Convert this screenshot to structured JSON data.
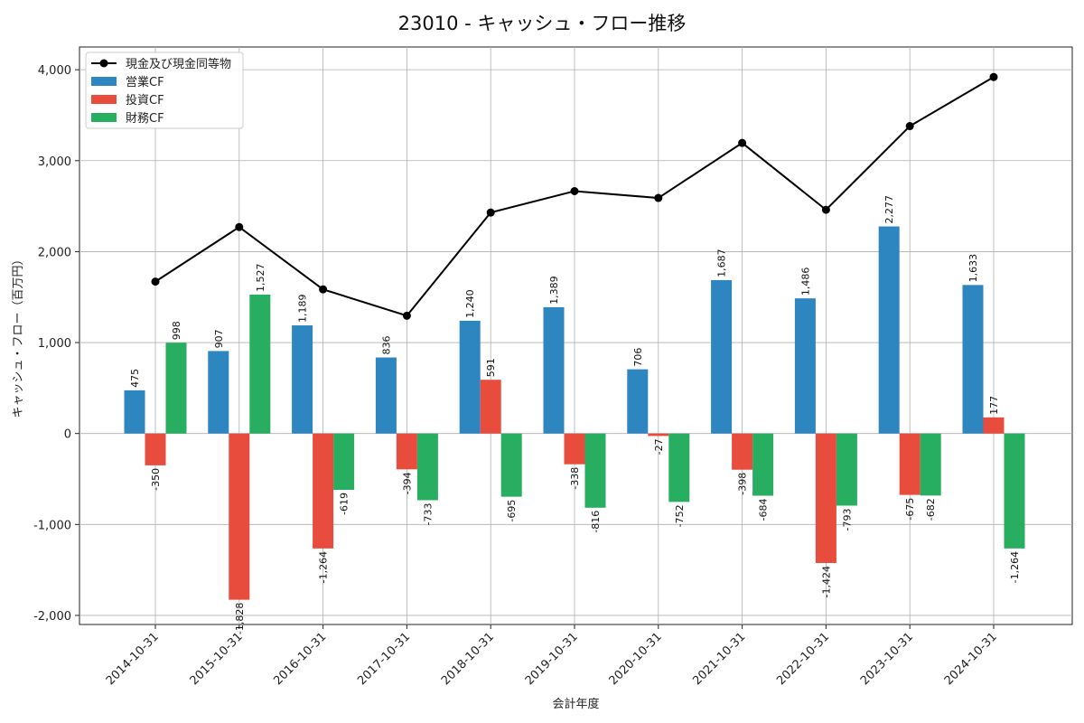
{
  "chart_data": {
    "type": "bar",
    "title": "23010 - キャッシュ・フロー推移",
    "xlabel": "会計年度",
    "ylabel": "キャッシュ・フロー（百万円）",
    "categories": [
      "2014-10-31",
      "2015-10-31",
      "2016-10-31",
      "2017-10-31",
      "2018-10-31",
      "2019-10-31",
      "2020-10-31",
      "2021-10-31",
      "2022-10-31",
      "2023-10-31",
      "2024-10-31"
    ],
    "series": [
      {
        "name": "営業CF",
        "type": "bar",
        "color": "#2e86c1",
        "values": [
          475,
          907,
          1189,
          836,
          1240,
          1389,
          706,
          1687,
          1486,
          2277,
          1633
        ]
      },
      {
        "name": "投資CF",
        "type": "bar",
        "color": "#e74c3c",
        "values": [
          -350,
          -1828,
          -1264,
          -394,
          591,
          -338,
          -27,
          -398,
          -1424,
          -675,
          177
        ]
      },
      {
        "name": "財務CF",
        "type": "bar",
        "color": "#27ae60",
        "values": [
          998,
          1527,
          -619,
          -733,
          -695,
          -816,
          -752,
          -684,
          -793,
          -682,
          -1264
        ]
      },
      {
        "name": "現金及び現金同等物",
        "type": "line",
        "color": "#000000",
        "values": [
          1670,
          2270,
          1585,
          1295,
          2430,
          2665,
          2590,
          3195,
          2460,
          3380,
          3920
        ]
      }
    ],
    "ylim": [
      -2100,
      4250
    ],
    "yticks": [
      4000,
      3000,
      2000,
      1000,
      0,
      -1000,
      -2000
    ],
    "ytick_labels": [
      "4,000",
      "3,000",
      "2,000",
      "1,000",
      "0",
      "-1,000",
      "-2,000"
    ],
    "grid": true,
    "legend_position": "top-left"
  }
}
